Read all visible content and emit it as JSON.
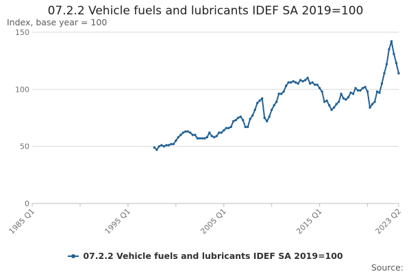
{
  "chart_data": {
    "type": "line",
    "title": "07.2.2 Vehicle fuels and lubricants IDEF SA 2019=100",
    "ylabel": "Index, base year = 100",
    "xlabel": "",
    "x_ticks": [
      "1985 Q1",
      "1995 Q1",
      "2005 Q1",
      "2015 Q1",
      "2023 Q2"
    ],
    "y_ticks": [
      0,
      50,
      100,
      150
    ],
    "ylim": [
      0,
      150
    ],
    "xlim": [
      "1985 Q1",
      "2023 Q2"
    ],
    "grid": "horizontal",
    "legend_position": "bottom",
    "series": [
      {
        "name": "07.2.2 Vehicle fuels and lubricants IDEF SA 2019=100",
        "color": "#206095",
        "x": [
          "1997 Q4",
          "1998 Q1",
          "1998 Q2",
          "1998 Q3",
          "1998 Q4",
          "1999 Q1",
          "1999 Q2",
          "1999 Q3",
          "1999 Q4",
          "2000 Q1",
          "2000 Q2",
          "2000 Q3",
          "2000 Q4",
          "2001 Q1",
          "2001 Q2",
          "2001 Q3",
          "2001 Q4",
          "2002 Q1",
          "2002 Q2",
          "2002 Q3",
          "2002 Q4",
          "2003 Q1",
          "2003 Q2",
          "2003 Q3",
          "2003 Q4",
          "2004 Q1",
          "2004 Q2",
          "2004 Q3",
          "2004 Q4",
          "2005 Q1",
          "2005 Q2",
          "2005 Q3",
          "2005 Q4",
          "2006 Q1",
          "2006 Q2",
          "2006 Q3",
          "2006 Q4",
          "2007 Q1",
          "2007 Q2",
          "2007 Q3",
          "2007 Q4",
          "2008 Q1",
          "2008 Q2",
          "2008 Q3",
          "2008 Q4",
          "2009 Q1",
          "2009 Q2",
          "2009 Q3",
          "2009 Q4",
          "2010 Q1",
          "2010 Q2",
          "2010 Q3",
          "2010 Q4",
          "2011 Q1",
          "2011 Q2",
          "2011 Q3",
          "2011 Q4",
          "2012 Q1",
          "2012 Q2",
          "2012 Q3",
          "2012 Q4",
          "2013 Q1",
          "2013 Q2",
          "2013 Q3",
          "2013 Q4",
          "2014 Q1",
          "2014 Q2",
          "2014 Q3",
          "2014 Q4",
          "2015 Q1",
          "2015 Q2",
          "2015 Q3",
          "2015 Q4",
          "2016 Q1",
          "2016 Q2",
          "2016 Q3",
          "2016 Q4",
          "2017 Q1",
          "2017 Q2",
          "2017 Q3",
          "2017 Q4",
          "2018 Q1",
          "2018 Q2",
          "2018 Q3",
          "2018 Q4",
          "2019 Q1",
          "2019 Q2",
          "2019 Q3",
          "2019 Q4",
          "2020 Q1",
          "2020 Q2",
          "2020 Q3",
          "2020 Q4",
          "2021 Q1",
          "2021 Q2",
          "2021 Q3",
          "2021 Q4",
          "2022 Q1",
          "2022 Q2",
          "2022 Q3",
          "2022 Q4",
          "2023 Q1",
          "2023 Q2"
        ],
        "values": [
          49,
          47,
          50,
          51,
          50,
          51,
          51,
          52,
          52,
          55,
          58,
          60,
          62,
          63,
          63,
          62,
          60,
          60,
          57,
          57,
          57,
          57,
          58,
          62,
          59,
          58,
          59,
          62,
          62,
          64,
          66,
          66,
          67,
          72,
          73,
          75,
          76,
          73,
          67,
          67,
          74,
          77,
          82,
          88,
          90,
          92,
          75,
          72,
          76,
          82,
          86,
          89,
          96,
          96,
          98,
          103,
          106,
          106,
          107,
          106,
          105,
          108,
          107,
          108,
          110,
          105,
          106,
          104,
          104,
          101,
          98,
          89,
          90,
          86,
          82,
          84,
          87,
          89,
          96,
          92,
          91,
          93,
          97,
          96,
          101,
          99,
          99,
          101,
          102,
          98,
          84,
          87,
          89,
          98,
          97,
          105,
          114,
          122,
          135,
          142,
          131,
          123,
          114
        ]
      }
    ]
  },
  "legend": {
    "label": "07.2.2 Vehicle fuels and lubricants IDEF SA 2019=100"
  },
  "source": {
    "label": "Source:"
  }
}
